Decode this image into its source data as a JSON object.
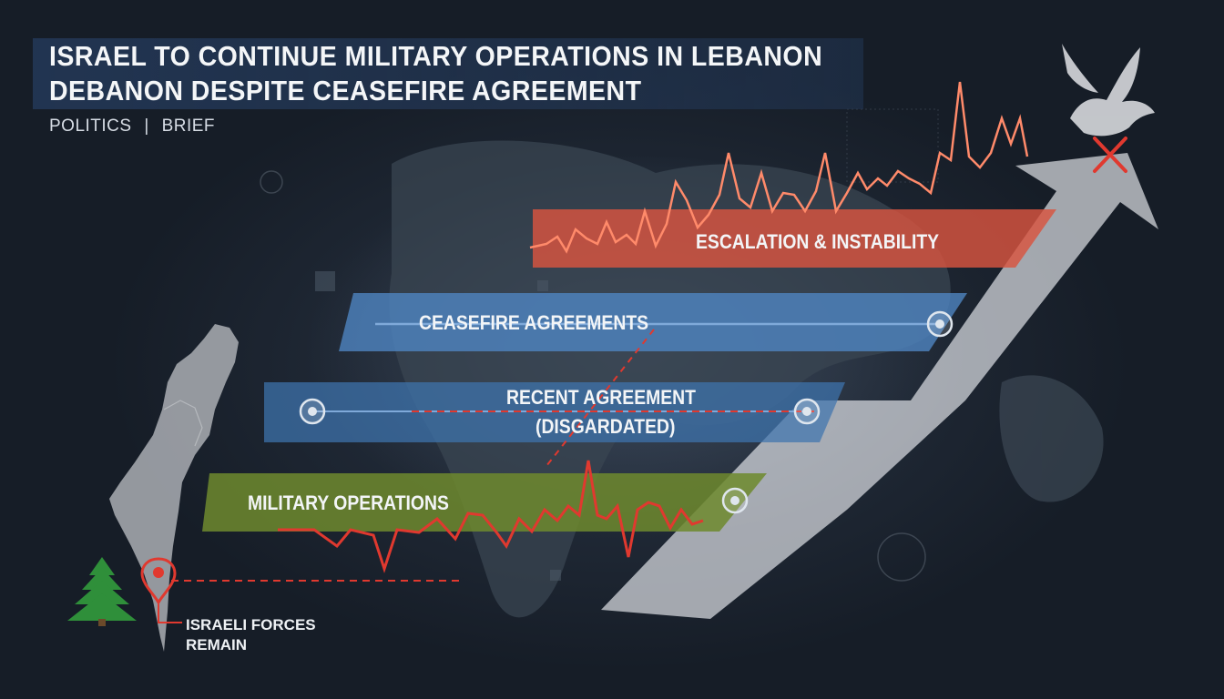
{
  "header": {
    "title_line1": "ISRAEL TO CONTINUE MILITARY OPERATIONS IN LEBANON",
    "title_line2": "DEBANON DESPITE CEASEFIRE AGREEMENT",
    "category": "POLITICS",
    "separator": "|",
    "type": "BRIEF"
  },
  "bands": {
    "escalation": "ESCALATION & INSTABILITY",
    "ceasefire": "CEASEFIRE AGREEMENTS",
    "recent_line1": "RECENT AGREEMENT",
    "recent_line2": "(DISGARDATED)",
    "military": "MILITARY OPERATIONS"
  },
  "map": {
    "marker_line1": "ISRAELI FORCES",
    "marker_line2": "REMAIN"
  },
  "colors": {
    "escalation": "#d9543f",
    "ceasefire": "#4f86c4",
    "recent": "#3f74ae",
    "military": "#6e8a2e",
    "alert": "#e0392f",
    "arrow": "#d9dde2"
  },
  "icons": [
    "dove-icon",
    "cross-mark-icon",
    "location-pin-icon",
    "cedar-tree-icon",
    "node-icon"
  ]
}
